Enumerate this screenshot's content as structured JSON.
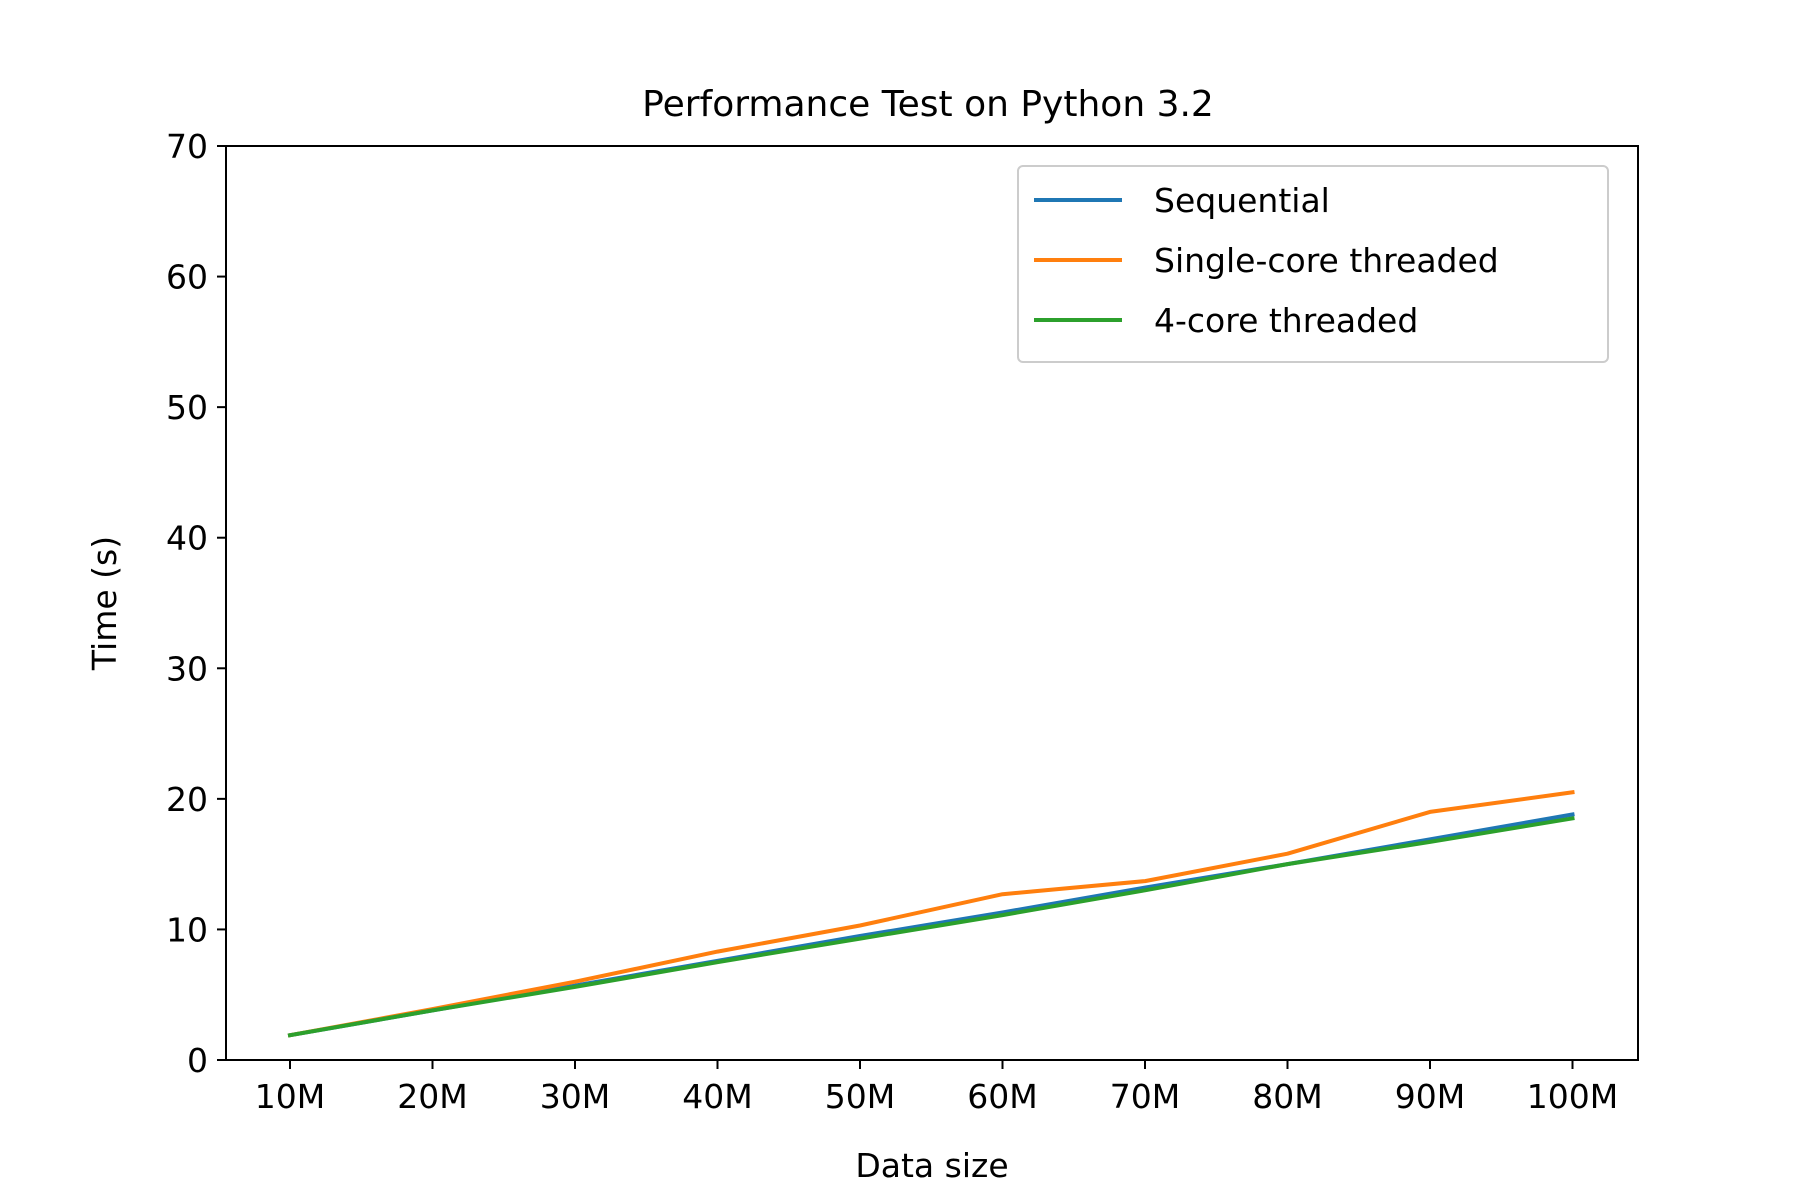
{
  "chart_data": {
    "type": "line",
    "title": "Performance Test on Python 3.2",
    "xlabel": "Data size",
    "ylabel": "Time (s)",
    "categories": [
      "10M",
      "20M",
      "30M",
      "40M",
      "50M",
      "60M",
      "70M",
      "80M",
      "90M",
      "100M"
    ],
    "ylim": [
      0,
      70
    ],
    "yticks": [
      0,
      10,
      20,
      30,
      40,
      50,
      60,
      70
    ],
    "grid": false,
    "legend_position": "top-right",
    "series": [
      {
        "name": "Sequential",
        "color": "#1f77b4",
        "values": [
          1.9,
          3.8,
          5.7,
          7.6,
          9.5,
          11.3,
          13.2,
          15.0,
          16.9,
          18.8
        ]
      },
      {
        "name": "Single-core threaded",
        "color": "#ff7f0e",
        "values": [
          1.9,
          3.9,
          6.0,
          8.3,
          10.3,
          12.7,
          13.7,
          15.8,
          19.0,
          20.5
        ]
      },
      {
        "name": "4-core threaded",
        "color": "#2ca02c",
        "values": [
          1.9,
          3.8,
          5.6,
          7.5,
          9.3,
          11.1,
          13.0,
          15.0,
          16.7,
          18.5
        ]
      }
    ]
  }
}
